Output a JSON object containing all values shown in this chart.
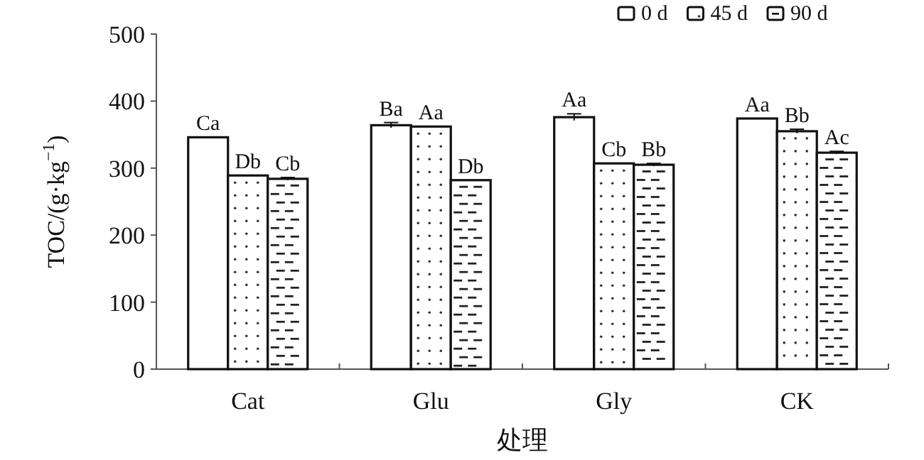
{
  "chart_data": {
    "type": "bar",
    "xlabel": "处理",
    "ylabel": "TOC/(g·kg$^{−1}$)",
    "categories": [
      "Cat",
      "Glu",
      "Gly",
      "CK"
    ],
    "series": [
      {
        "name": "0 d",
        "color": "#ffffff",
        "values": [
          346,
          364,
          376,
          374
        ],
        "errors": [
          null,
          4,
          5,
          null
        ],
        "value_labels": [
          "Ca",
          "Ba",
          "Aa",
          "Aa"
        ]
      },
      {
        "name": "45 d",
        "color": "#ffffff",
        "values": [
          289,
          362,
          307,
          355
        ],
        "errors": [
          null,
          null,
          null,
          3
        ],
        "value_labels": [
          "Db",
          "Aa",
          "Cb",
          "Bb"
        ]
      },
      {
        "name": "90 d",
        "color": "#ffffff",
        "values": [
          284,
          282,
          305,
          323
        ],
        "errors": [
          2,
          null,
          2,
          2
        ],
        "value_labels": [
          "Cb",
          "Db",
          "Bb",
          "Ac"
        ]
      }
    ],
    "ylim": [
      0,
      500
    ],
    "yticks": [
      0,
      100,
      200,
      300,
      400,
      500
    ],
    "legend": "top right"
  }
}
